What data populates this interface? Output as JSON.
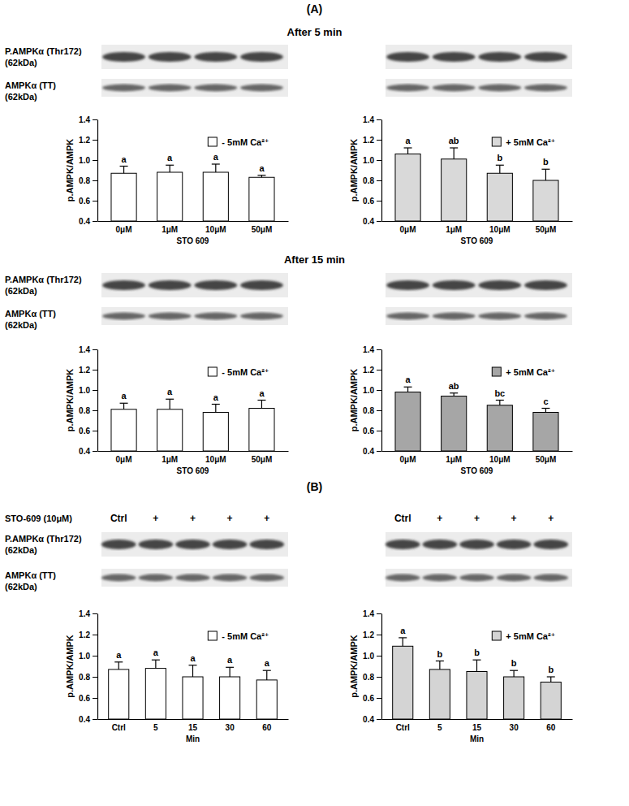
{
  "chart_data": [
    {
      "type": "bar",
      "categories": [
        "0μM",
        "1μM",
        "10μM",
        "50μM"
      ],
      "x_label": "STO 609",
      "y_label": "p.AMPK/AMPK",
      "ylim": [
        0.4,
        1.4
      ],
      "yticks": [
        0.4,
        0.6,
        0.8,
        {
          "value": 1,
          "label": "1.0"
        },
        1.2,
        1.4
      ],
      "grid": false,
      "legend": "top-right",
      "series": [
        {
          "name": "- 5mM Ca²⁺",
          "color": "#ffffff",
          "values": [
            0.87,
            0.88,
            0.88,
            0.83
          ],
          "errors": [
            0.07,
            0.07,
            0.08,
            0.02
          ],
          "letters": [
            "a",
            "a",
            "a",
            "a"
          ]
        }
      ]
    },
    {
      "type": "bar",
      "categories": [
        "0μM",
        "1μM",
        "10μM",
        "50μM"
      ],
      "x_label": "STO 609",
      "y_label": "p.AMPK/AMPK",
      "ylim": [
        0.4,
        1.4
      ],
      "yticks": [
        0.4,
        0.6,
        0.8,
        {
          "value": 1,
          "label": "1.0"
        },
        1.2,
        1.4
      ],
      "grid": false,
      "legend": "top-right",
      "series": [
        {
          "name": "+ 5mM Ca²⁺",
          "color": "#d9d9d9",
          "values": [
            1.06,
            1.01,
            0.87,
            0.8
          ],
          "errors": [
            0.06,
            0.11,
            0.08,
            0.11
          ],
          "letters": [
            "a",
            "ab",
            "b",
            "b"
          ]
        }
      ]
    },
    {
      "type": "bar",
      "categories": [
        "0μM",
        "1μM",
        "10μM",
        "50μM"
      ],
      "x_label": "STO 609",
      "y_label": "p.AMPK/AMPK",
      "ylim": [
        0.4,
        1.4
      ],
      "yticks": [
        0.4,
        0.6,
        0.8,
        {
          "value": 1,
          "label": "1.0"
        },
        1.2,
        1.4
      ],
      "grid": false,
      "legend": "top-right",
      "series": [
        {
          "name": "- 5mM Ca²⁺",
          "color": "#ffffff",
          "values": [
            0.81,
            0.81,
            0.78,
            0.82
          ],
          "errors": [
            0.06,
            0.1,
            0.08,
            0.08
          ],
          "letters": [
            "a",
            "a",
            "a",
            "a"
          ]
        }
      ]
    },
    {
      "type": "bar",
      "categories": [
        "0μM",
        "1μM",
        "10μM",
        "50μM"
      ],
      "x_label": "STO 609",
      "y_label": "p.AMPK/AMPK",
      "ylim": [
        0.4,
        1.4
      ],
      "yticks": [
        0.4,
        0.6,
        0.8,
        {
          "value": 1,
          "label": "1.0"
        },
        1.2,
        1.4
      ],
      "grid": false,
      "legend": "top-right",
      "series": [
        {
          "name": "+ 5mM Ca²⁺",
          "color": "#a6a6a6",
          "values": [
            0.98,
            0.94,
            0.85,
            0.78
          ],
          "errors": [
            0.05,
            0.03,
            0.05,
            0.04
          ],
          "letters": [
            "a",
            "ab",
            "bc",
            "c"
          ]
        }
      ]
    },
    {
      "type": "bar",
      "categories": [
        "Ctrl",
        "5",
        "15",
        "30",
        "60"
      ],
      "x_label": "Min",
      "y_label": "p.AMPK/AMPK",
      "ylim": [
        0.4,
        1.4
      ],
      "yticks": [
        0.4,
        0.6,
        0.8,
        {
          "value": 1,
          "label": "1.0"
        },
        1.2,
        1.4
      ],
      "grid": false,
      "legend": "top-right",
      "series": [
        {
          "name": "- 5mM Ca²⁺",
          "color": "#ffffff",
          "values": [
            0.87,
            0.88,
            0.8,
            0.8,
            0.77
          ],
          "errors": [
            0.07,
            0.08,
            0.11,
            0.09,
            0.09
          ],
          "letters": [
            "a",
            "a",
            "a",
            "a",
            "a"
          ]
        }
      ]
    },
    {
      "type": "bar",
      "categories": [
        "Ctrl",
        "5",
        "15",
        "30",
        "60"
      ],
      "x_label": "Min",
      "y_label": "p.AMPK/AMPK",
      "ylim": [
        0.4,
        1.4
      ],
      "yticks": [
        0.4,
        0.6,
        0.8,
        {
          "value": 1,
          "label": "1.0"
        },
        1.2,
        1.4
      ],
      "grid": false,
      "legend": "top-right",
      "series": [
        {
          "name": "+ 5mM Ca²⁺",
          "color": "#d4d4d4",
          "values": [
            1.09,
            0.87,
            0.85,
            0.8,
            0.75
          ],
          "errors": [
            0.08,
            0.08,
            0.11,
            0.06,
            0.05
          ],
          "letters": [
            "a",
            "b",
            "b",
            "b",
            "b"
          ]
        }
      ]
    }
  ],
  "figure": {
    "panel_labels": [
      "(A)",
      "(B)"
    ],
    "timepoints": [
      "After 5 min",
      "After 15 min"
    ],
    "blot_labels": [
      [
        "P.AMPKα (Thr172)",
        "(62kDa)"
      ],
      [
        "AMPKα (TT)",
        "(62kDa)"
      ]
    ],
    "treatment": {
      "label": "STO-609 (10μM)",
      "lanes": [
        "Ctrl",
        "+",
        "+",
        "+",
        "+"
      ]
    }
  }
}
